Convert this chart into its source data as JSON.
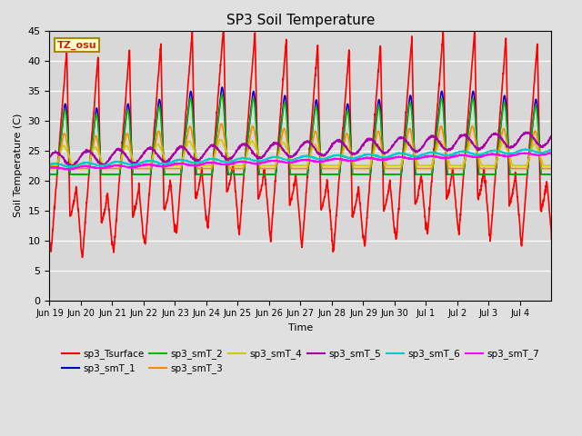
{
  "title": "SP3 Soil Temperature",
  "ylabel": "Soil Temperature (C)",
  "xlabel": "Time",
  "tz_label": "TZ_osu",
  "ylim": [
    0,
    45
  ],
  "series": {
    "sp3_Tsurface": {
      "color": "#ff0000",
      "lw": 1.2
    },
    "sp3_smT_1": {
      "color": "#0000cc",
      "lw": 1.2
    },
    "sp3_smT_2": {
      "color": "#00bb00",
      "lw": 1.2
    },
    "sp3_smT_3": {
      "color": "#ff8800",
      "lw": 1.2
    },
    "sp3_smT_4": {
      "color": "#cccc00",
      "lw": 1.2
    },
    "sp3_smT_5": {
      "color": "#aa00aa",
      "lw": 1.2
    },
    "sp3_smT_6": {
      "color": "#00cccc",
      "lw": 1.2
    },
    "sp3_smT_7": {
      "color": "#ff00ff",
      "lw": 1.2
    }
  },
  "xtick_labels": [
    "Jun 19",
    "Jun 20",
    "Jun 21",
    "Jun 22",
    "Jun 23",
    "Jun 24",
    "Jun 25",
    "Jun 26",
    "Jun 27",
    "Jun 28",
    "Jun 29",
    "Jun 30",
    "Jul 1",
    "Jul 2",
    "Jul 3",
    "Jul 4"
  ],
  "n_days": 16,
  "points_per_day": 144
}
